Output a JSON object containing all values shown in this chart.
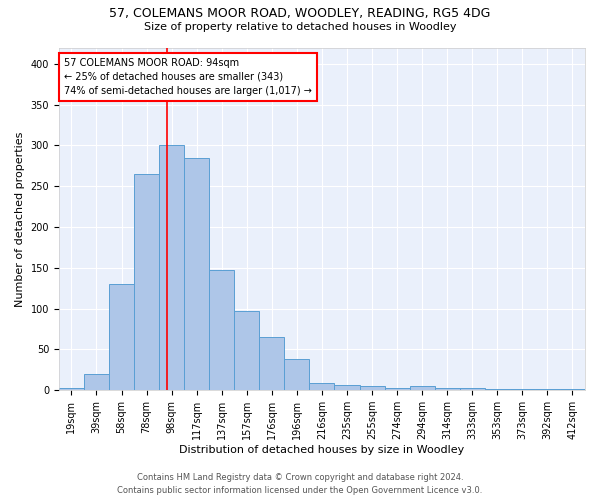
{
  "title1": "57, COLEMANS MOOR ROAD, WOODLEY, READING, RG5 4DG",
  "title2": "Size of property relative to detached houses in Woodley",
  "xlabel": "Distribution of detached houses by size in Woodley",
  "ylabel": "Number of detached properties",
  "footer1": "Contains HM Land Registry data © Crown copyright and database right 2024.",
  "footer2": "Contains public sector information licensed under the Open Government Licence v3.0.",
  "annotation_line1": "57 COLEMANS MOOR ROAD: 94sqm",
  "annotation_line2": "← 25% of detached houses are smaller (343)",
  "annotation_line3": "74% of semi-detached houses are larger (1,017) →",
  "bar_categories": [
    "19sqm",
    "39sqm",
    "58sqm",
    "78sqm",
    "98sqm",
    "117sqm",
    "137sqm",
    "157sqm",
    "176sqm",
    "196sqm",
    "216sqm",
    "235sqm",
    "255sqm",
    "274sqm",
    "294sqm",
    "314sqm",
    "333sqm",
    "353sqm",
    "373sqm",
    "392sqm",
    "412sqm"
  ],
  "bar_values": [
    3,
    20,
    130,
    265,
    300,
    285,
    147,
    97,
    65,
    38,
    9,
    6,
    5,
    3,
    5,
    3,
    3,
    2,
    1,
    1,
    1
  ],
  "bar_color": "#aec6e8",
  "bar_edge_color": "#5a9fd4",
  "background_color": "#eaf0fb",
  "property_line_color": "red",
  "ylim": [
    0,
    420
  ],
  "yticks": [
    0,
    50,
    100,
    150,
    200,
    250,
    300,
    350,
    400
  ],
  "annotation_box_color": "white",
  "annotation_box_edge": "red",
  "title1_fontsize": 9,
  "title2_fontsize": 8,
  "xlabel_fontsize": 8,
  "ylabel_fontsize": 8,
  "tick_fontsize": 7,
  "footer_fontsize": 6
}
